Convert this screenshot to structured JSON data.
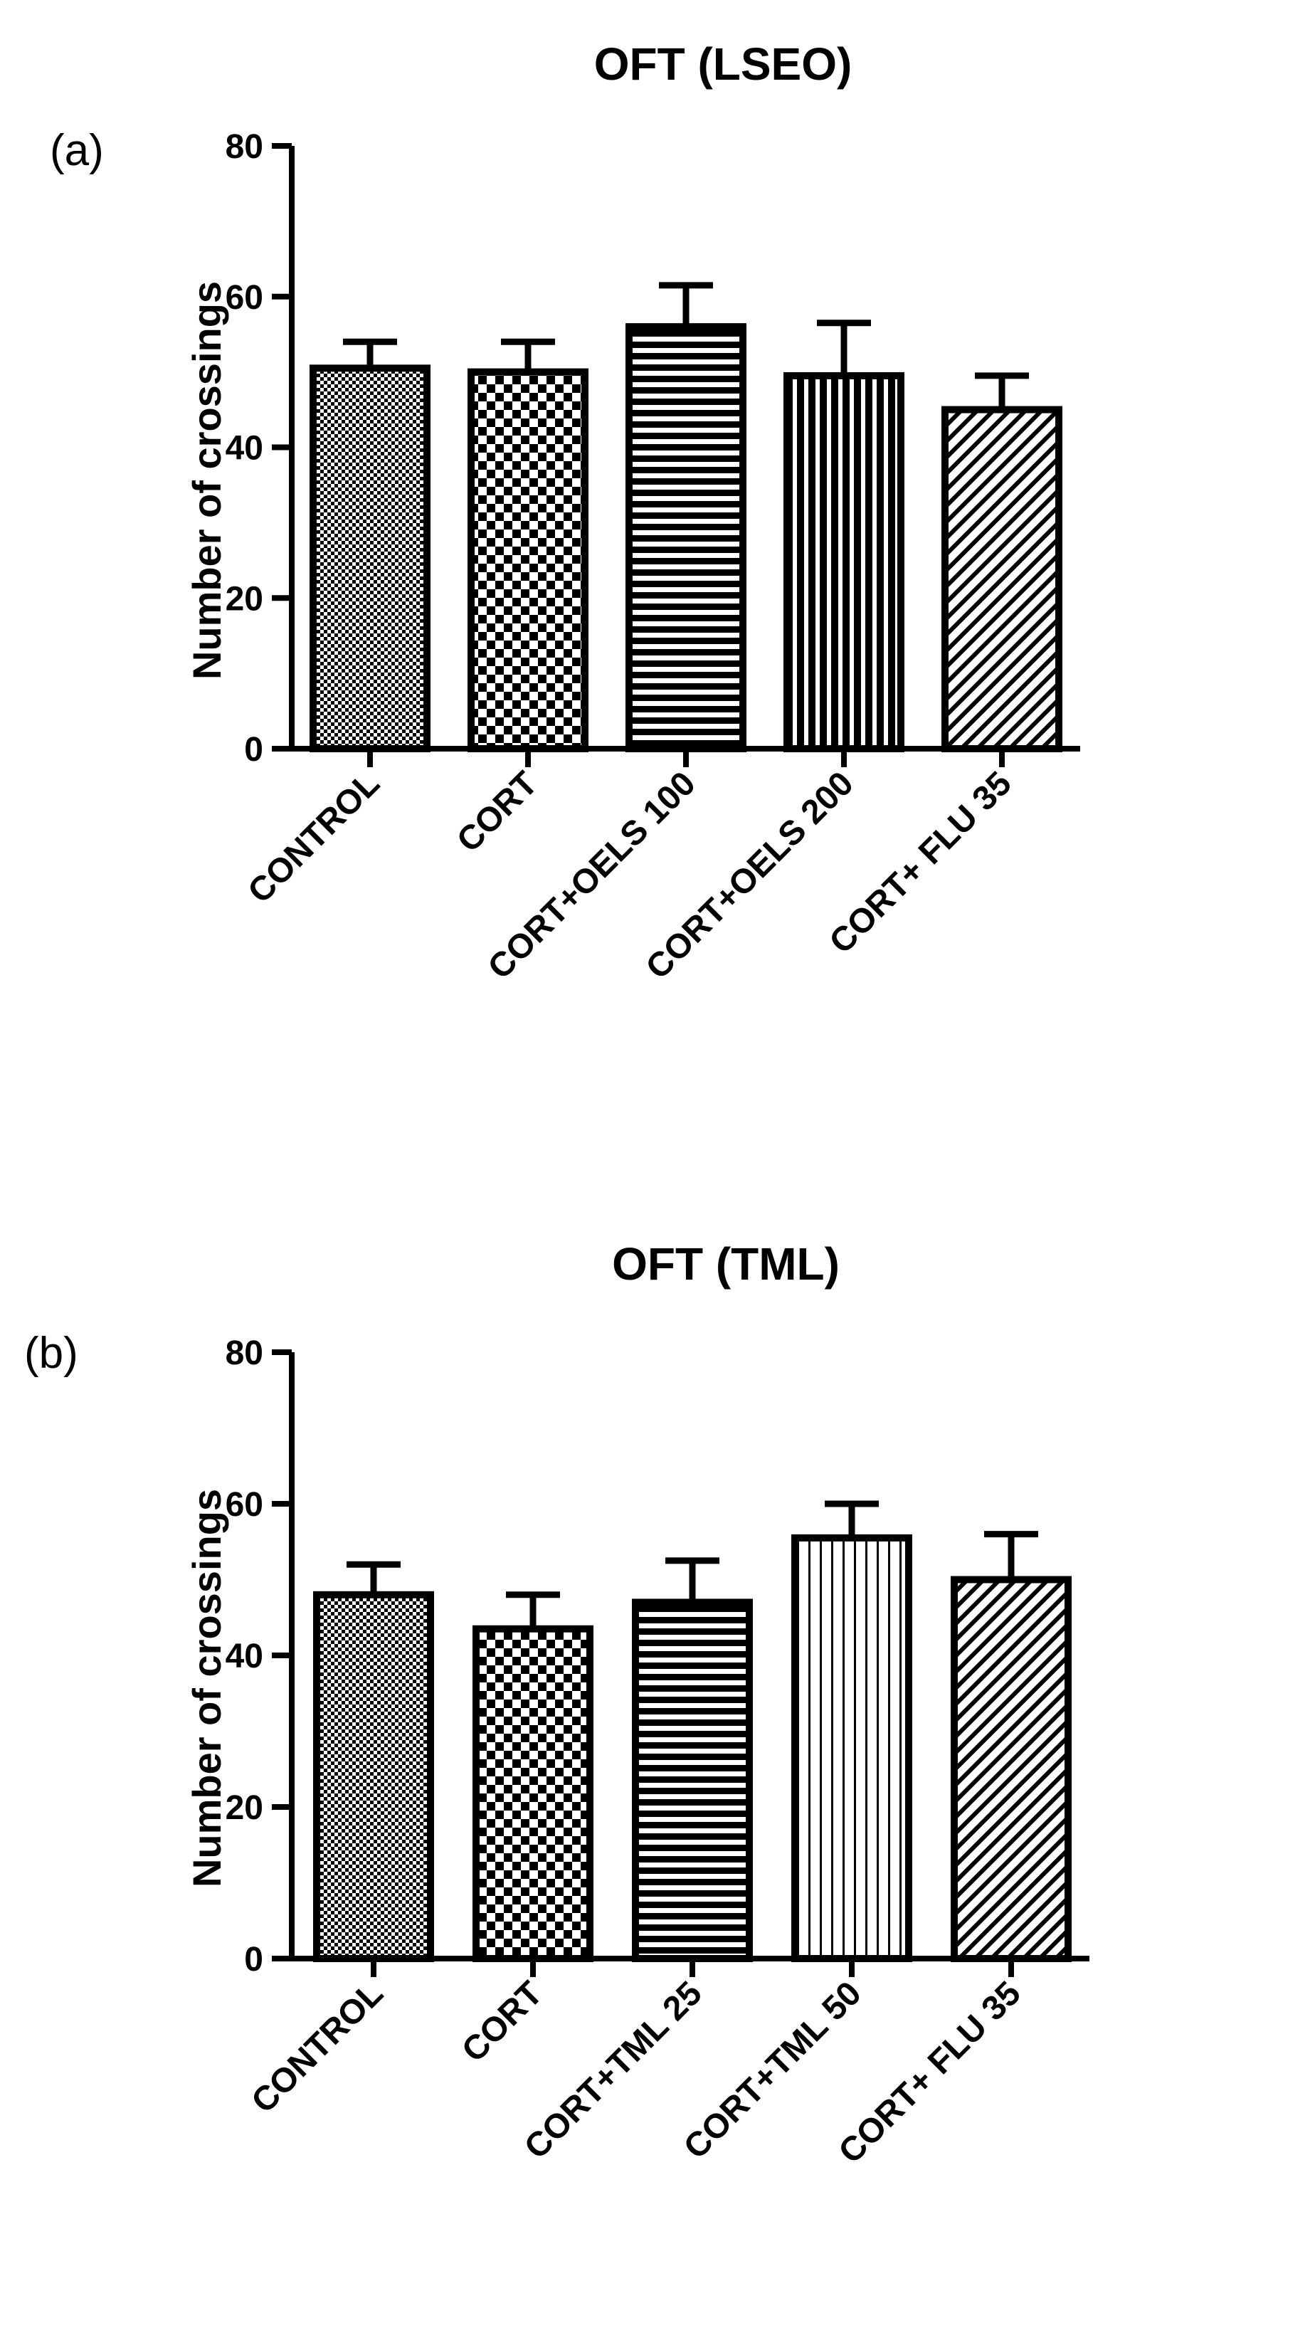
{
  "chart_data": [
    {
      "type": "bar",
      "panel": "(a)",
      "title": "OFT (LSEO)",
      "xlabel": "",
      "ylabel": "Number of crossings",
      "ylim": [
        0,
        80
      ],
      "yticks": [
        0,
        20,
        40,
        60,
        80
      ],
      "grid": false,
      "categories": [
        "CONTROL",
        "CORT",
        "CORT+OELS 100",
        "CORT+OELS 200",
        "CORT+ FLU 35"
      ],
      "values": [
        50.5,
        50,
        56,
        49.5,
        45
      ],
      "errors": [
        3.5,
        4,
        5.5,
        7,
        4.5
      ],
      "patterns": [
        "fine-check",
        "check",
        "horizontal",
        "vertical-dense",
        "diagonal"
      ]
    },
    {
      "type": "bar",
      "panel": "(b)",
      "title": "OFT (TML)",
      "xlabel": "",
      "ylabel": "Number of crossings",
      "ylim": [
        0,
        80
      ],
      "yticks": [
        0,
        20,
        40,
        60,
        80
      ],
      "grid": false,
      "categories": [
        "CONTROL",
        "CORT",
        "CORT+TML 25",
        "CORT+TML 50",
        "CORT+ FLU 35"
      ],
      "values": [
        48,
        43.5,
        47,
        55.5,
        50
      ],
      "errors": [
        4,
        4.5,
        5.5,
        4.5,
        6
      ],
      "patterns": [
        "fine-check",
        "check",
        "horizontal",
        "vertical",
        "diagonal"
      ]
    }
  ]
}
